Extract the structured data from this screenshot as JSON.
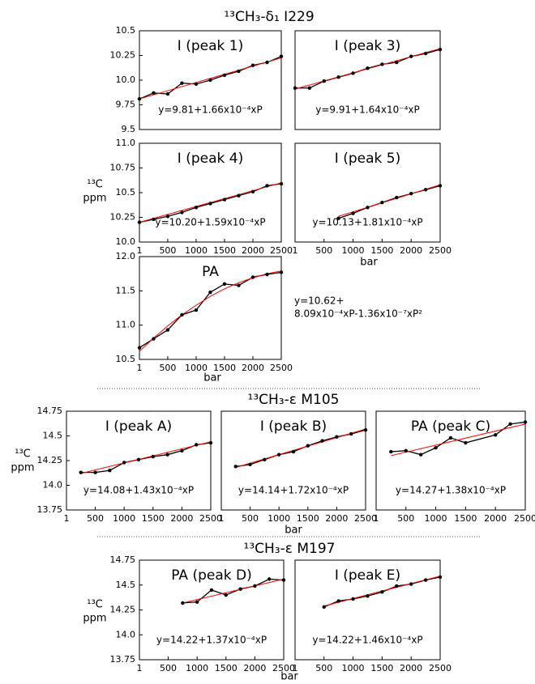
{
  "sections": [
    {
      "title": "¹³CH₃-δ₁ I229"
    },
    {
      "title": "¹³CH₃-ε M105"
    },
    {
      "title": "¹³CH₃-ε M197"
    }
  ],
  "chart_data": [
    {
      "type": "line",
      "title": "I (peak 1)",
      "annotation": [
        "y=9.81+1.66x10⁻⁴xP"
      ],
      "color": "#000000",
      "fit_color": "#ff0000",
      "x": [
        1,
        250,
        500,
        750,
        1000,
        1250,
        1500,
        1750,
        2000,
        2250,
        2500
      ],
      "values": [
        9.81,
        9.87,
        9.86,
        9.97,
        9.96,
        10.0,
        10.05,
        10.09,
        10.15,
        10.18,
        10.24
      ],
      "fit_x": [
        1,
        2500
      ],
      "fit_values": [
        9.81,
        10.225
      ],
      "xlim": [
        1,
        2500
      ],
      "ylim": [
        9.5,
        10.5
      ],
      "yticks": [
        9.5,
        9.75,
        {
          "value": 10.0,
          "label": "10.0"
        },
        10.25,
        10.5
      ]
    },
    {
      "type": "line",
      "title": "I (peak 3)",
      "annotation": [
        "y=9.91+1.64x10⁻⁴xP"
      ],
      "color": "#000000",
      "fit_color": "#ff0000",
      "x": [
        1,
        250,
        500,
        750,
        1000,
        1250,
        1500,
        1750,
        2000,
        2250,
        2500
      ],
      "values": [
        9.92,
        9.92,
        9.99,
        10.03,
        10.07,
        10.12,
        10.16,
        10.18,
        10.24,
        10.27,
        10.31
      ],
      "fit_x": [
        1,
        2500
      ],
      "fit_values": [
        9.91,
        10.32
      ],
      "xlim": [
        1,
        2500
      ],
      "ylim": [
        9.5,
        10.5
      ]
    },
    {
      "type": "line",
      "title": "I (peak 4)",
      "annotation": [
        "y=10.20+1.59x10⁻⁴xP"
      ],
      "color": "#000000",
      "fit_color": "#ff0000",
      "ylabel": [
        "¹³C",
        "ppm"
      ],
      "x": [
        1,
        250,
        500,
        750,
        1000,
        1250,
        1500,
        1750,
        2000,
        2250,
        2500
      ],
      "values": [
        10.2,
        10.23,
        10.26,
        10.3,
        10.35,
        10.39,
        10.43,
        10.47,
        10.51,
        10.57,
        10.59
      ],
      "fit_x": [
        1,
        2500
      ],
      "fit_values": [
        10.2,
        10.6
      ],
      "xlim": [
        1,
        2500
      ],
      "ylim": [
        10.0,
        11.0
      ],
      "xticks": [
        1,
        500,
        1000,
        1500,
        2000,
        2500
      ],
      "yticks": [
        {
          "value": 10.0,
          "label": "10.0"
        },
        10.25,
        10.5,
        10.75,
        {
          "value": 11.0,
          "label": "11.0"
        }
      ]
    },
    {
      "type": "line",
      "title": "I (peak 5)",
      "annotation": [
        "y=10.13+1.81x10⁻⁴xP"
      ],
      "color": "#000000",
      "fit_color": "#ff0000",
      "xlabel": "bar",
      "x": [
        750,
        1000,
        1250,
        1500,
        1750,
        2000,
        2250,
        2500
      ],
      "values": [
        10.24,
        10.29,
        10.35,
        10.4,
        10.45,
        10.49,
        10.53,
        10.57
      ],
      "fit_x": [
        750,
        2500
      ],
      "fit_values": [
        10.26,
        10.58
      ],
      "xlim": [
        1,
        2500
      ],
      "ylim": [
        10.0,
        11.0
      ],
      "xticks": [
        1,
        500,
        1000,
        1500,
        2000,
        2500
      ]
    },
    {
      "type": "line",
      "title": "PA",
      "annotation": [
        "y=10.62+",
        "8.09x10⁻⁴xP-1.36x10⁻⁷xP²"
      ],
      "color": "#000000",
      "fit_color": "#ff0000",
      "xlabel": "bar",
      "x": [
        1,
        250,
        500,
        750,
        1000,
        1250,
        1500,
        1750,
        2000,
        2250,
        2500
      ],
      "values": [
        10.67,
        10.8,
        10.93,
        11.15,
        11.22,
        11.48,
        11.6,
        11.58,
        11.7,
        11.74,
        11.77
      ],
      "fit_x": [
        1,
        250,
        500,
        750,
        1000,
        1250,
        1500,
        1750,
        2000,
        2250,
        2500
      ],
      "fit_values": [
        10.62,
        10.81,
        10.99,
        11.15,
        11.29,
        11.42,
        11.53,
        11.62,
        11.69,
        11.75,
        11.79
      ],
      "xlim": [
        1,
        2500
      ],
      "ylim": [
        10.5,
        12.0
      ],
      "xticks": [
        1,
        500,
        1000,
        1500,
        2000,
        2500
      ],
      "yticks": [
        10.5,
        {
          "value": 11.0,
          "label": "11.0"
        },
        11.5,
        {
          "value": 12.0,
          "label": "12.0"
        }
      ]
    },
    {
      "type": "line",
      "title": "I (peak A)",
      "annotation": [
        "y=14.08+1.43x10⁻⁴xP"
      ],
      "color": "#000000",
      "fit_color": "#ff0000",
      "ylabel": [
        "¹³C",
        "ppm"
      ],
      "x": [
        250,
        500,
        750,
        1000,
        1250,
        1500,
        1750,
        2000,
        2250,
        2500
      ],
      "values": [
        14.13,
        14.13,
        14.15,
        14.23,
        14.26,
        14.29,
        14.31,
        14.35,
        14.41,
        14.43
      ],
      "fit_x": [
        250,
        2500
      ],
      "fit_values": [
        14.12,
        14.44
      ],
      "xlim": [
        1,
        2500
      ],
      "ylim": [
        13.75,
        14.75
      ],
      "xticks": [
        1,
        500,
        1000,
        1500,
        2000,
        2500
      ],
      "yticks": [
        13.75,
        {
          "value": 14.0,
          "label": "14.0"
        },
        14.25,
        14.5,
        14.75
      ]
    },
    {
      "type": "line",
      "title": "I (peak B)",
      "annotation": [
        "y=14.14+1.72x10⁻⁴xP"
      ],
      "color": "#000000",
      "fit_color": "#ff0000",
      "xlabel": "bar",
      "x": [
        250,
        500,
        750,
        1000,
        1250,
        1500,
        1750,
        2000,
        2250,
        2500
      ],
      "values": [
        14.19,
        14.21,
        14.26,
        14.31,
        14.34,
        14.4,
        14.45,
        14.49,
        14.52,
        14.56
      ],
      "fit_x": [
        250,
        2500
      ],
      "fit_values": [
        14.18,
        14.57
      ],
      "xlim": [
        1,
        2500
      ],
      "ylim": [
        13.75,
        14.75
      ],
      "xticks": [
        1,
        500,
        1000,
        1500,
        2000,
        2500
      ]
    },
    {
      "type": "line",
      "title": "PA (peak C)",
      "annotation": [
        "y=14.27+1.38x10⁻⁴xP"
      ],
      "color": "#000000",
      "fit_color": "#ff0000",
      "x": [
        250,
        500,
        750,
        1000,
        1250,
        1500,
        2000,
        2250,
        2500
      ],
      "values": [
        14.34,
        14.35,
        14.31,
        14.38,
        14.48,
        14.43,
        14.51,
        14.62,
        14.64
      ],
      "fit_x": [
        250,
        2500
      ],
      "fit_values": [
        14.3,
        14.62
      ],
      "xlim": [
        1,
        2500
      ],
      "ylim": [
        13.75,
        14.75
      ],
      "xticks": [
        1,
        500,
        1000,
        1500,
        2000,
        2500
      ]
    },
    {
      "type": "line",
      "title": "PA (peak D)",
      "annotation": [
        "y=14.22+1.37x10⁻⁴xP"
      ],
      "color": "#000000",
      "fit_color": "#ff0000",
      "ylabel": [
        "¹³C",
        "ppm"
      ],
      "xlabel": "bar",
      "x": [
        750,
        1000,
        1250,
        1500,
        1750,
        2000,
        2250,
        2500
      ],
      "values": [
        14.32,
        14.33,
        14.45,
        14.4,
        14.46,
        14.49,
        14.56,
        14.55
      ],
      "fit_x": [
        750,
        2500
      ],
      "fit_values": [
        14.32,
        14.56
      ],
      "xlim": [
        1,
        2500
      ],
      "ylim": [
        13.75,
        14.75
      ],
      "xticks": [
        1,
        500,
        1000,
        1500,
        2000,
        2500
      ],
      "yticks": [
        13.75,
        {
          "value": 14.0,
          "label": "14.0"
        },
        14.25,
        14.5,
        14.75
      ]
    },
    {
      "type": "line",
      "title": "I (peak E)",
      "annotation": [
        "y=14.22+1.46x10⁻⁴xP"
      ],
      "color": "#000000",
      "fit_color": "#ff0000",
      "x": [
        500,
        750,
        1000,
        1250,
        1500,
        1750,
        2000,
        2250,
        2500
      ],
      "values": [
        14.28,
        14.34,
        14.36,
        14.39,
        14.43,
        14.49,
        14.51,
        14.55,
        14.58
      ],
      "fit_x": [
        500,
        2500
      ],
      "fit_values": [
        14.29,
        14.59
      ],
      "xlim": [
        1,
        2500
      ],
      "ylim": [
        13.75,
        14.75
      ],
      "xticks": [
        1,
        500,
        1000,
        1500,
        2000,
        2500
      ]
    }
  ]
}
